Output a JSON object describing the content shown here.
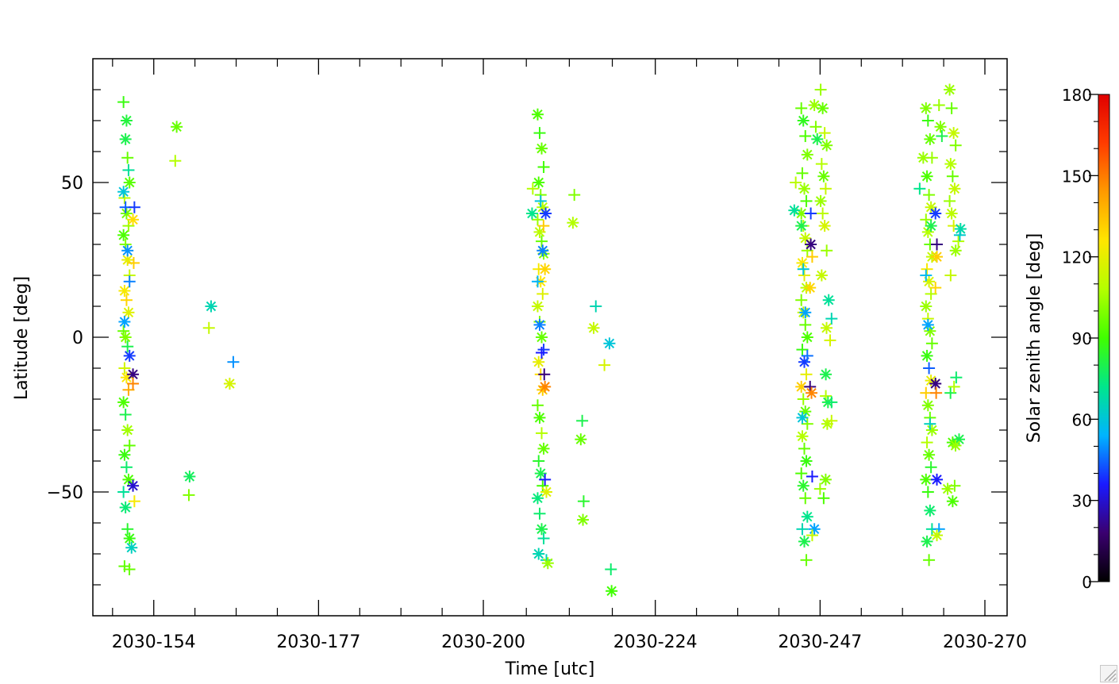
{
  "chart_data": {
    "type": "scatter",
    "xlabel": "Time [utc]",
    "ylabel": "Latitude [deg]",
    "x_tick_labels": [
      "2030-154",
      "2030-177",
      "2030-200",
      "2030-224",
      "2030-247",
      "2030-270"
    ],
    "x_tick_days": [
      154,
      177,
      200,
      224,
      247,
      270
    ],
    "xlim_days": [
      145.5,
      273.1
    ],
    "ylim": [
      -90,
      90
    ],
    "y_ticks": [
      -50,
      0,
      50
    ],
    "grid": false,
    "marker_types": [
      "plus",
      "asterisk"
    ],
    "colorbar": {
      "label": "Solar zenith angle [deg]",
      "range": [
        0,
        180
      ],
      "ticks": [
        0,
        30,
        60,
        90,
        120,
        150,
        180
      ],
      "colormap": [
        "#000000",
        "#3a0070",
        "#1a1aff",
        "#00b4ff",
        "#00e68c",
        "#40ff00",
        "#b4ff00",
        "#ffe600",
        "#ff9a00",
        "#ff3c00",
        "#e00000"
      ]
    },
    "groups": [
      {
        "day": 150.2,
        "lat": [
          76,
          64,
          58,
          50,
          45,
          40,
          36,
          33,
          30,
          25,
          20,
          15,
          12,
          8,
          2,
          0,
          -3,
          -6,
          -10,
          -13,
          -17,
          -21,
          -25,
          -30,
          -35,
          -38,
          -42,
          -46,
          -50,
          -55,
          -62,
          -65,
          -74,
          70,
          54,
          47,
          42,
          28,
          18,
          5
        ],
        "sza": [
          88,
          80,
          96,
          94,
          110,
          98,
          104,
          92,
          100,
          120,
          112,
          124,
          130,
          118,
          96,
          100,
          80,
          40,
          115,
          125,
          140,
          92,
          80,
          105,
          95,
          88,
          76,
          92,
          70,
          75,
          84,
          88,
          95,
          82,
          70,
          60,
          44,
          50,
          48,
          52
        ]
      },
      {
        "day": 151.3,
        "lat": 42,
        "sza": 40
      },
      {
        "day": 151.1,
        "lat": -12,
        "sza": 20
      },
      {
        "day": 151.1,
        "lat": -15,
        "sza": 148
      },
      {
        "day": 151.1,
        "lat": -48,
        "sza": 30
      },
      {
        "day": 151.3,
        "lat": -53,
        "sza": 124
      },
      {
        "day": 150.9,
        "lat": -68,
        "sza": 64
      },
      {
        "day": 150.6,
        "lat": -75,
        "sza": 96
      },
      {
        "day": 151.1,
        "lat": 38,
        "sza": 128
      },
      {
        "day": 151.2,
        "lat": 24,
        "sza": 132
      },
      {
        "day": 157.2,
        "lat": 68,
        "sza": 96
      },
      {
        "day": 157.0,
        "lat": 57,
        "sza": 108
      },
      {
        "day": 159.0,
        "lat": -45,
        "sza": 78
      },
      {
        "day": 158.9,
        "lat": -51,
        "sza": 100
      },
      {
        "day": 162.0,
        "lat": 10,
        "sza": 66
      },
      {
        "day": 161.7,
        "lat": 3,
        "sza": 112
      },
      {
        "day": 164.6,
        "lat": -15,
        "sza": 116
      },
      {
        "day": 165.1,
        "lat": -8,
        "sza": 50
      },
      {
        "day": 208.0,
        "lat": [
          72,
          66,
          61,
          55,
          50,
          46,
          42,
          38,
          34,
          31,
          27,
          22,
          18,
          14,
          10,
          5,
          0,
          -4,
          -8,
          -12,
          -17,
          -22,
          -26,
          -31,
          -36,
          -40,
          -44,
          -48,
          -52,
          -57,
          -62,
          -65,
          -70,
          44,
          28,
          18,
          4,
          -5
        ],
        "sza": [
          92,
          88,
          96,
          90,
          92,
          100,
          108,
          104,
          110,
          96,
          100,
          124,
          126,
          118,
          112,
          100,
          96,
          40,
          120,
          128,
          132,
          96,
          92,
          108,
          96,
          84,
          80,
          90,
          74,
          76,
          80,
          70,
          66,
          60,
          48,
          54,
          48,
          36
        ]
      },
      {
        "day": 208.7,
        "lat": 40,
        "sza": 40
      },
      {
        "day": 208.4,
        "lat": 36,
        "sza": 132
      },
      {
        "day": 208.6,
        "lat": 22,
        "sza": 130
      },
      {
        "day": 208.5,
        "lat": -12,
        "sza": 20
      },
      {
        "day": 208.6,
        "lat": -16,
        "sza": 148
      },
      {
        "day": 208.6,
        "lat": -46,
        "sza": 36
      },
      {
        "day": 208.8,
        "lat": -50,
        "sza": 118
      },
      {
        "day": 208.8,
        "lat": -72,
        "sza": 64
      },
      {
        "day": 209.0,
        "lat": -73,
        "sza": 104
      },
      {
        "day": 206.9,
        "lat": 48,
        "sza": 108
      },
      {
        "day": 206.8,
        "lat": 40,
        "sza": 72
      },
      {
        "day": 212.7,
        "lat": 46,
        "sza": 100
      },
      {
        "day": 212.5,
        "lat": 37,
        "sza": 108
      },
      {
        "day": 215.7,
        "lat": 10,
        "sza": 66
      },
      {
        "day": 215.4,
        "lat": 3,
        "sza": 112
      },
      {
        "day": 216.9,
        "lat": -9,
        "sza": 116
      },
      {
        "day": 217.6,
        "lat": -2,
        "sza": 60
      },
      {
        "day": 213.8,
        "lat": -27,
        "sza": 80
      },
      {
        "day": 213.6,
        "lat": -33,
        "sza": 96
      },
      {
        "day": 214.0,
        "lat": -53,
        "sza": 84
      },
      {
        "day": 213.9,
        "lat": -59,
        "sza": 100
      },
      {
        "day": 217.8,
        "lat": -75,
        "sza": 76
      },
      {
        "day": 217.9,
        "lat": -82,
        "sza": 90
      },
      {
        "day": 244.8,
        "lat": [
          74,
          70,
          65,
          59,
          53,
          48,
          44,
          40,
          36,
          32,
          28,
          24,
          20,
          16,
          12,
          8,
          4,
          0,
          -4,
          -8,
          -12,
          -16,
          -20,
          -24,
          -28,
          -32,
          -36,
          -40,
          -44,
          -48,
          -52,
          -58,
          -62,
          -66,
          -72,
          36,
          22,
          8,
          -6,
          -26
        ],
        "sza": [
          96,
          86,
          92,
          100,
          96,
          104,
          92,
          100,
          108,
          112,
          104,
          124,
          120,
          108,
          100,
          112,
          96,
          92,
          88,
          40,
          120,
          132,
          104,
          96,
          100,
          108,
          96,
          88,
          92,
          84,
          96,
          72,
          66,
          80,
          96,
          80,
          60,
          52,
          46,
          60
        ]
      },
      {
        "day": 245.7,
        "lat": 40,
        "sza": 40
      },
      {
        "day": 245.7,
        "lat": 30,
        "sza": 20
      },
      {
        "day": 245.9,
        "lat": 26,
        "sza": 132
      },
      {
        "day": 245.6,
        "lat": 16,
        "sza": 130
      },
      {
        "day": 245.6,
        "lat": -16,
        "sza": 20
      },
      {
        "day": 245.8,
        "lat": -18,
        "sza": 148
      },
      {
        "day": 245.9,
        "lat": -45,
        "sza": 36
      },
      {
        "day": 246.2,
        "lat": -62,
        "sza": 52
      },
      {
        "day": 245.9,
        "lat": -64,
        "sza": 112
      },
      {
        "day": 246.2,
        "lat": 75,
        "sza": 104
      },
      {
        "day": 246.4,
        "lat": 68,
        "sza": 100
      },
      {
        "day": 246.6,
        "lat": 64,
        "sza": 80
      },
      {
        "day": 243.6,
        "lat": 50,
        "sza": 110
      },
      {
        "day": 243.4,
        "lat": 41,
        "sza": 70
      },
      {
        "day": 247.5,
        "lat": [
          80,
          74,
          66,
          62,
          56,
          52,
          48,
          44,
          40,
          36,
          28,
          20,
          -52,
          -46
        ],
        "sza": [
          104,
          96,
          112,
          100,
          108,
          96,
          112,
          104,
          110,
          116,
          104,
          112,
          92,
          100
        ]
      },
      {
        "day": 247.0,
        "lat": -49,
        "sza": 104
      },
      {
        "day": 248.2,
        "lat": 12,
        "sza": 70
      },
      {
        "day": 248.6,
        "lat": 6,
        "sza": 66
      },
      {
        "day": 247.9,
        "lat": 3,
        "sza": 112
      },
      {
        "day": 248.4,
        "lat": -1,
        "sza": 116
      },
      {
        "day": 247.8,
        "lat": -12,
        "sza": 80
      },
      {
        "day": 247.8,
        "lat": -19,
        "sza": 108
      },
      {
        "day": 248.1,
        "lat": -21,
        "sza": 80
      },
      {
        "day": 248.6,
        "lat": -21,
        "sza": 76
      },
      {
        "day": 248.0,
        "lat": -28,
        "sza": 108
      },
      {
        "day": 248.6,
        "lat": -27,
        "sza": 112
      },
      {
        "day": 262.2,
        "lat": [
          74,
          70,
          64,
          58,
          52,
          46,
          42,
          38,
          34,
          30,
          26,
          22,
          18,
          14,
          10,
          6,
          2,
          -2,
          -6,
          -10,
          -14,
          -18,
          -22,
          -26,
          -30,
          -34,
          -38,
          -42,
          -46,
          -50,
          -56,
          -62,
          -66,
          -72,
          36,
          20,
          4,
          -28
        ],
        "sza": [
          100,
          88,
          96,
          104,
          92,
          100,
          112,
          104,
          108,
          96,
          112,
          124,
          116,
          108,
          104,
          112,
          100,
          96,
          88,
          44,
          120,
          132,
          100,
          96,
          104,
          108,
          96,
          84,
          92,
          88,
          76,
          70,
          80,
          96,
          80,
          56,
          52,
          64
        ]
      },
      {
        "day": 263.1,
        "lat": 40,
        "sza": 40
      },
      {
        "day": 263.3,
        "lat": 30,
        "sza": 20
      },
      {
        "day": 263.3,
        "lat": 26,
        "sza": 132
      },
      {
        "day": 263.1,
        "lat": 16,
        "sza": 130
      },
      {
        "day": 263.1,
        "lat": -15,
        "sza": 20
      },
      {
        "day": 263.2,
        "lat": -18,
        "sza": 148
      },
      {
        "day": 263.3,
        "lat": -46,
        "sza": 36
      },
      {
        "day": 263.6,
        "lat": -62,
        "sza": 52
      },
      {
        "day": 263.3,
        "lat": -64,
        "sza": 112
      },
      {
        "day": 263.6,
        "lat": 75,
        "sza": 104
      },
      {
        "day": 263.8,
        "lat": 68,
        "sza": 100
      },
      {
        "day": 264.0,
        "lat": 65,
        "sza": 80
      },
      {
        "day": 261.4,
        "lat": 58,
        "sza": 104
      },
      {
        "day": 260.9,
        "lat": 48,
        "sza": 72
      },
      {
        "day": 265.5,
        "lat": [
          80,
          74,
          66,
          62,
          56,
          52,
          48,
          44,
          40,
          36,
          28,
          20,
          -53,
          -48
        ],
        "sza": [
          104,
          96,
          112,
          100,
          108,
          96,
          112,
          104,
          110,
          116,
          104,
          112,
          92,
          100
        ]
      },
      {
        "day": 264.8,
        "lat": -49,
        "sza": 104
      },
      {
        "day": 265.2,
        "lat": -18,
        "sza": 80
      },
      {
        "day": 265.5,
        "lat": -34,
        "sza": 92
      },
      {
        "day": 266.0,
        "lat": -13,
        "sza": 76
      },
      {
        "day": 266.4,
        "lat": -33,
        "sza": 80
      },
      {
        "day": 265.7,
        "lat": -16,
        "sza": 108
      },
      {
        "day": 265.9,
        "lat": -35,
        "sza": 104
      },
      {
        "day": 266.3,
        "lat": 31,
        "sza": 108
      },
      {
        "day": 266.6,
        "lat": 35,
        "sza": 68
      },
      {
        "day": 266.5,
        "lat": 33,
        "sza": 62
      }
    ]
  }
}
